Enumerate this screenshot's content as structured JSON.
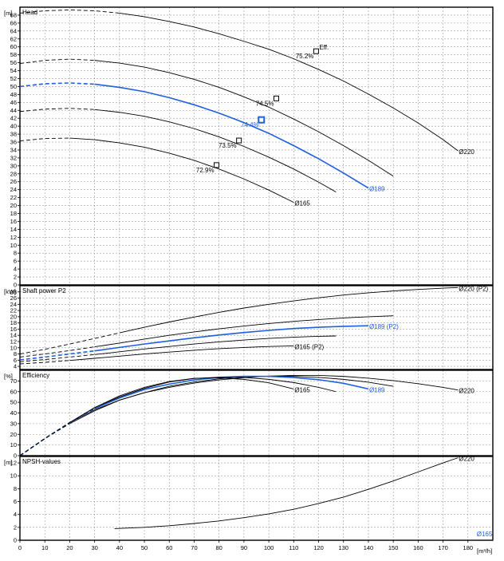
{
  "colors": {
    "black": "#000000",
    "blue": "#1f5fe0",
    "grid": "#9a9a9a"
  },
  "x_axis": {
    "unit": "[m³/h]",
    "ticks": [
      "0",
      "10",
      "20",
      "30",
      "40",
      "50",
      "60",
      "70",
      "80",
      "90",
      "100",
      "110",
      "120",
      "130",
      "140",
      "150",
      "160",
      "170",
      "180"
    ]
  },
  "chart_data": [
    {
      "type": "line",
      "title": "Head",
      "unit": "[m]",
      "xlim": [
        0,
        190
      ],
      "ylim": [
        0,
        70
      ],
      "yticks": [
        "0",
        "2",
        "4",
        "6",
        "8",
        "10",
        "12",
        "14",
        "16",
        "18",
        "20",
        "22",
        "24",
        "26",
        "28",
        "30",
        "32",
        "34",
        "36",
        "38",
        "40",
        "42",
        "44",
        "46",
        "48",
        "50",
        "52",
        "54",
        "56",
        "58",
        "60",
        "62",
        "64",
        "66",
        "68"
      ],
      "series": [
        {
          "name": "Ø220",
          "color": "black",
          "dashed_until": 35,
          "x": [
            0,
            10,
            20,
            30,
            40,
            50,
            60,
            70,
            80,
            90,
            100,
            110,
            120,
            130,
            140,
            150,
            160,
            170,
            176
          ],
          "y": [
            68.5,
            69.1,
            69.3,
            69.1,
            68.5,
            67.6,
            66.4,
            65.0,
            63.3,
            61.4,
            59.4,
            57.0,
            54.3,
            51.4,
            48.1,
            44.6,
            40.8,
            36.6,
            33.8
          ]
        },
        {
          "name": "",
          "color": "black",
          "dashed_until": 30,
          "x": [
            0,
            10,
            20,
            30,
            40,
            50,
            60,
            70,
            80,
            90,
            100,
            110,
            120,
            130,
            140,
            150
          ],
          "y": [
            55.8,
            56.6,
            56.9,
            56.6,
            55.9,
            54.9,
            53.5,
            51.8,
            49.8,
            47.4,
            44.8,
            41.8,
            38.6,
            35.1,
            31.4,
            27.4
          ]
        },
        {
          "name": "Ø189",
          "color": "blue",
          "dashed_until": 30,
          "x": [
            0,
            10,
            20,
            30,
            40,
            50,
            60,
            70,
            80,
            90,
            100,
            110,
            120,
            130,
            140
          ],
          "y": [
            50.0,
            50.7,
            50.9,
            50.6,
            49.8,
            48.7,
            47.2,
            45.4,
            43.3,
            40.9,
            38.2,
            35.1,
            31.8,
            28.2,
            24.4
          ]
        },
        {
          "name": "",
          "color": "black",
          "dashed_until": 25,
          "x": [
            0,
            10,
            20,
            30,
            40,
            50,
            60,
            70,
            80,
            90,
            100,
            110,
            120,
            127
          ],
          "y": [
            43.7,
            44.3,
            44.5,
            44.2,
            43.5,
            42.5,
            41.1,
            39.4,
            37.3,
            34.9,
            32.2,
            29.2,
            25.9,
            23.4
          ]
        },
        {
          "name": "Ø165",
          "color": "black",
          "dashed_until": 20,
          "x": [
            0,
            10,
            20,
            30,
            40,
            50,
            60,
            70,
            80,
            90,
            100,
            110
          ],
          "y": [
            36.3,
            36.9,
            37.0,
            36.6,
            35.8,
            34.7,
            33.2,
            31.4,
            29.2,
            26.7,
            23.9,
            20.8
          ]
        }
      ],
      "markers": [
        {
          "x": 119,
          "y": 58.9,
          "label": "75.2%",
          "color": "black",
          "tag": "Eff."
        },
        {
          "x": 103,
          "y": 47.0,
          "label": "74.5%",
          "color": "black",
          "tag": ""
        },
        {
          "x": 97,
          "y": 41.6,
          "label": "74.4%",
          "color": "blue",
          "tag": ""
        },
        {
          "x": 88,
          "y": 36.4,
          "label": "73.5%",
          "color": "black",
          "tag": ""
        },
        {
          "x": 79,
          "y": 30.2,
          "label": "72.9%",
          "color": "black",
          "tag": ""
        }
      ]
    },
    {
      "type": "line",
      "title": "Shaft power P2",
      "unit": "[kW]",
      "xlim": [
        0,
        190
      ],
      "ylim": [
        3,
        30
      ],
      "yticks": [
        "4",
        "6",
        "8",
        "10",
        "12",
        "14",
        "16",
        "18",
        "20",
        "22",
        "24",
        "26",
        "28"
      ],
      "series": [
        {
          "name": "Ø220 (P2)",
          "color": "black",
          "dashed_until": 35,
          "x": [
            0,
            10,
            20,
            30,
            40,
            50,
            60,
            70,
            80,
            90,
            100,
            110,
            120,
            130,
            140,
            150,
            160,
            170,
            176
          ],
          "y": [
            8.0,
            9.5,
            11.2,
            13.0,
            14.8,
            16.6,
            18.3,
            19.9,
            21.4,
            22.8,
            24.0,
            25.1,
            26.1,
            27.0,
            27.7,
            28.3,
            28.8,
            29.2,
            29.4
          ]
        },
        {
          "name": "",
          "color": "black",
          "dashed_until": 30,
          "x": [
            0,
            10,
            20,
            30,
            40,
            50,
            60,
            70,
            80,
            90,
            100,
            110,
            120,
            130,
            140,
            150
          ],
          "y": [
            7.0,
            8.0,
            9.1,
            10.3,
            11.5,
            12.8,
            14.0,
            15.1,
            16.1,
            17.0,
            17.8,
            18.5,
            19.1,
            19.6,
            20.0,
            20.3
          ]
        },
        {
          "name": "Ø189 (P2)",
          "color": "blue",
          "dashed_until": 30,
          "x": [
            0,
            10,
            20,
            30,
            40,
            50,
            60,
            70,
            80,
            90,
            100,
            110,
            120,
            130,
            140
          ],
          "y": [
            6.1,
            7.0,
            8.0,
            9.0,
            10.1,
            11.2,
            12.2,
            13.2,
            14.1,
            14.9,
            15.6,
            16.2,
            16.6,
            16.9,
            17.1
          ]
        },
        {
          "name": "",
          "color": "black",
          "dashed_until": 25,
          "x": [
            0,
            10,
            20,
            30,
            40,
            50,
            60,
            70,
            80,
            90,
            100,
            110,
            120,
            127
          ],
          "y": [
            5.5,
            6.2,
            7.0,
            7.8,
            8.7,
            9.6,
            10.4,
            11.2,
            11.9,
            12.5,
            13.0,
            13.4,
            13.7,
            13.8
          ]
        },
        {
          "name": "Ø165 (P2)",
          "color": "black",
          "dashed_until": 20,
          "x": [
            0,
            10,
            20,
            30,
            40,
            50,
            60,
            70,
            80,
            90,
            100,
            110
          ],
          "y": [
            4.8,
            5.3,
            5.9,
            6.6,
            7.3,
            8.0,
            8.6,
            9.2,
            9.7,
            10.1,
            10.4,
            10.6
          ]
        }
      ]
    },
    {
      "type": "line",
      "title": "Efficiency",
      "unit": "[%]",
      "xlim": [
        0,
        190
      ],
      "ylim": [
        0,
        80
      ],
      "yticks": [
        "0",
        "10",
        "20",
        "30",
        "40",
        "50",
        "60",
        "70"
      ],
      "series": [
        {
          "name": "Ø220",
          "color": "black",
          "dashed_until": 12,
          "x": [
            0,
            5,
            10,
            20,
            30,
            40,
            50,
            60,
            70,
            80,
            90,
            100,
            110,
            120,
            130,
            140,
            150,
            160,
            170,
            176
          ],
          "y": [
            0,
            8,
            16,
            31,
            43,
            52,
            59,
            64,
            68,
            71,
            73,
            74.5,
            75.2,
            75.2,
            74.3,
            72.6,
            70.3,
            67.4,
            64,
            61.5
          ]
        },
        {
          "name": "",
          "color": "black",
          "dashed_until": 12,
          "x": [
            0,
            5,
            10,
            20,
            30,
            40,
            50,
            60,
            70,
            80,
            90,
            100,
            110,
            120,
            130,
            140,
            150
          ],
          "y": [
            0,
            8,
            16,
            30,
            42,
            52,
            59,
            65,
            69,
            72,
            74,
            74.5,
            74.3,
            73.3,
            71.5,
            68.8,
            65
          ]
        },
        {
          "name": "Ø189",
          "color": "blue",
          "dashed_until": 30,
          "x": [
            0,
            5,
            10,
            20,
            30,
            40,
            50,
            60,
            70,
            80,
            90,
            100,
            110,
            120,
            130,
            140
          ],
          "y": [
            0,
            8,
            16,
            31,
            44,
            54,
            62,
            67,
            71,
            73.3,
            74.4,
            74.3,
            73.2,
            71.2,
            67.8,
            62.5
          ]
        },
        {
          "name": "",
          "color": "black",
          "dashed_until": 12,
          "x": [
            0,
            5,
            10,
            20,
            30,
            40,
            50,
            60,
            70,
            80,
            90,
            100,
            110,
            120,
            127
          ],
          "y": [
            0,
            8,
            16,
            31,
            45,
            55,
            63,
            69,
            72.3,
            73.5,
            73.2,
            71.5,
            68.5,
            64,
            60
          ]
        },
        {
          "name": "Ø165",
          "color": "black",
          "dashed_until": 12,
          "x": [
            0,
            5,
            10,
            20,
            30,
            40,
            50,
            60,
            70,
            80,
            90,
            100,
            110
          ],
          "y": [
            0,
            8,
            16,
            31,
            45,
            56,
            64,
            69.5,
            72.5,
            72.9,
            71.5,
            68.3,
            62.5
          ]
        }
      ]
    },
    {
      "type": "line",
      "title": "NPSH-values",
      "unit": "[m]",
      "xlim": [
        0,
        190
      ],
      "ylim": [
        0,
        13
      ],
      "yticks": [
        "0",
        "2",
        "4",
        "6",
        "8",
        "10",
        "12"
      ],
      "series": [
        {
          "name": "Ø220",
          "color": "black",
          "dashed_until": 0,
          "x": [
            38,
            50,
            60,
            70,
            80,
            90,
            100,
            110,
            120,
            130,
            140,
            150,
            160,
            170,
            176
          ],
          "y": [
            1.8,
            2.0,
            2.25,
            2.6,
            3.0,
            3.5,
            4.1,
            4.8,
            5.7,
            6.7,
            7.9,
            9.2,
            10.6,
            12.0,
            12.8
          ]
        }
      ],
      "extra_labels": [
        {
          "text": "Ø165",
          "x": 188,
          "y": 0.6,
          "color": "blue"
        }
      ]
    }
  ]
}
